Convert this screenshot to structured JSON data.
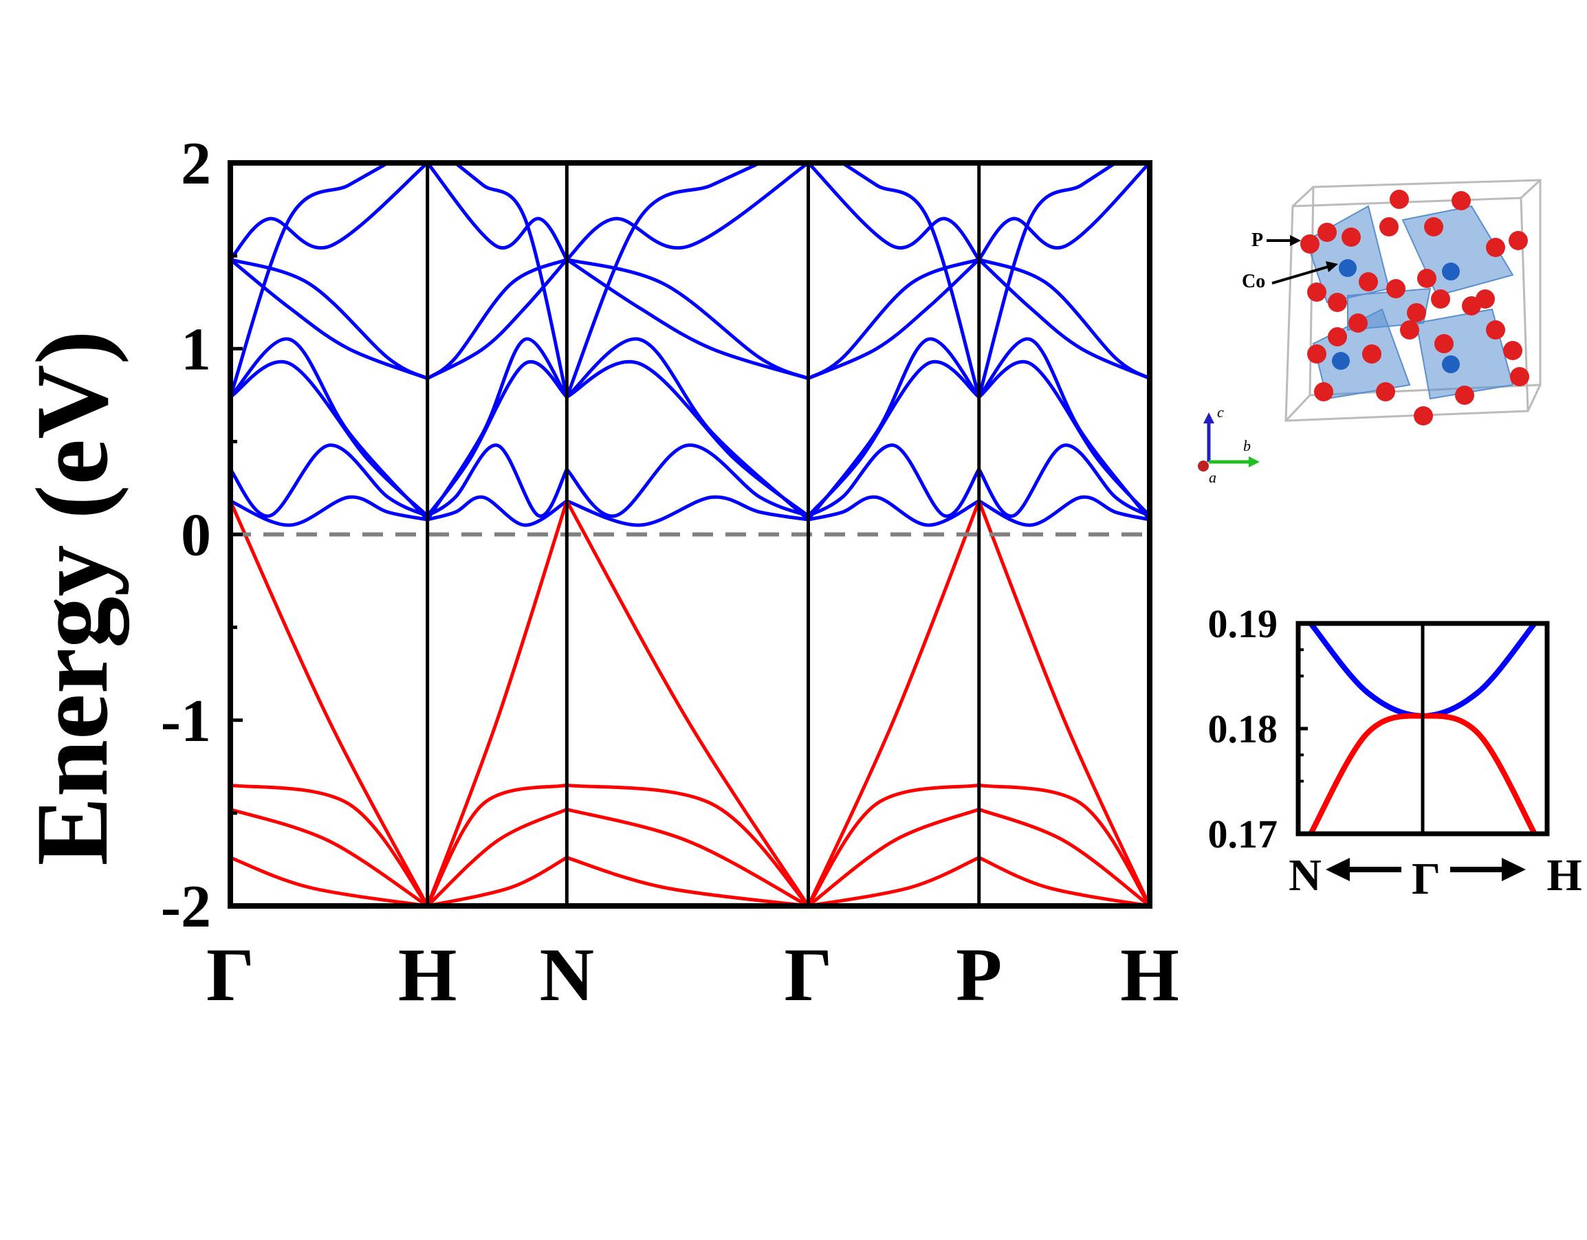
{
  "chart_data": [
    {
      "type": "line",
      "title": "",
      "xlabel": "",
      "ylabel": "Energy (eV)",
      "ylim": [
        -2,
        2
      ],
      "yticks": [
        "-2",
        "-1",
        "0",
        "1",
        "2"
      ],
      "kpath_labels": [
        "Γ",
        "H",
        "N",
        "Γ",
        "P",
        "H"
      ],
      "kpath_positions": [
        0,
        1.0,
        0.707,
        1.225,
        0.866,
        0.866
      ],
      "fermi_level": 0,
      "fermi_line_color": "#808080",
      "series": [
        {
          "band": "conduction",
          "color": "#0000ff",
          "branches": [
            {
              "x": [
                0,
                0.3,
                0.6,
                0.8,
                1.0
              ],
              "y": [
                0.18,
                0.05,
                0.2,
                0.12,
                0.08
              ]
            },
            {
              "x": [
                0,
                0.2,
                0.5,
                0.8,
                1.0
              ],
              "y": [
                0.35,
                0.1,
                0.48,
                0.2,
                0.1
              ]
            },
            {
              "x": [
                0,
                0.3,
                0.6,
                1.0
              ],
              "y": [
                0.74,
                1.05,
                0.55,
                0.08
              ]
            },
            {
              "x": [
                0,
                0.3,
                0.7,
                1.0
              ],
              "y": [
                0.74,
                0.92,
                0.4,
                0.1
              ]
            },
            {
              "x": [
                0,
                0.4,
                0.8,
                1.0
              ],
              "y": [
                1.48,
                1.35,
                0.95,
                0.84
              ]
            },
            {
              "x": [
                0,
                0.3,
                0.6,
                1.0
              ],
              "y": [
                1.48,
                1.22,
                1.0,
                0.84
              ]
            },
            {
              "x": [
                0,
                0.2,
                0.5,
                1.0
              ],
              "y": [
                1.48,
                1.7,
                1.55,
                2.0
              ]
            },
            {
              "x": [
                0,
                0.3,
                0.6,
                0.8
              ],
              "y": [
                0.74,
                1.7,
                1.88,
                2.0
              ]
            }
          ]
        },
        {
          "band": "valence",
          "color": "#ff0000",
          "branches": [
            {
              "x": [
                0,
                0.5,
                1.0
              ],
              "y": [
                0.18,
                -1.0,
                -2.0
              ]
            },
            {
              "x": [
                0,
                0.6,
                1.0
              ],
              "y": [
                -1.35,
                -1.45,
                -2.0
              ]
            },
            {
              "x": [
                0,
                0.5,
                1.0
              ],
              "y": [
                -1.48,
                -1.65,
                -2.0
              ]
            },
            {
              "x": [
                0,
                0.4,
                1.0
              ],
              "y": [
                -1.74,
                -1.9,
                -2.0
              ]
            }
          ]
        }
      ]
    },
    {
      "type": "line",
      "title": "",
      "inset": true,
      "ylim": [
        0.17,
        0.19
      ],
      "yticks": [
        "0.17",
        "0.18",
        "0.19"
      ],
      "xlabels": {
        "left": "N",
        "center": "Γ",
        "right": "H"
      },
      "series": [
        {
          "band": "conduction",
          "color": "#0000ff",
          "x": [
            -1,
            -0.5,
            0,
            0.5,
            1
          ],
          "y": [
            0.19,
            0.1835,
            0.1812,
            0.1835,
            0.19
          ]
        },
        {
          "band": "valence",
          "color": "#ff0000",
          "x": [
            -1,
            -0.5,
            0,
            0.5,
            1
          ],
          "y": [
            0.17,
            0.1795,
            0.1812,
            0.1795,
            0.17
          ]
        }
      ]
    }
  ],
  "crystal_structure": {
    "atom_labels": {
      "p": "P",
      "co": "Co"
    },
    "axis_labels": {
      "a": "a",
      "b": "b",
      "c": "c"
    },
    "colors": {
      "p_atom": "#e02020",
      "co_atom": "#2060c0",
      "polyhedra": "#5a8fd0",
      "cell": "#bbbbbb",
      "axis_a": "#c02020",
      "axis_b": "#20c020",
      "axis_c": "#2020c0"
    }
  }
}
